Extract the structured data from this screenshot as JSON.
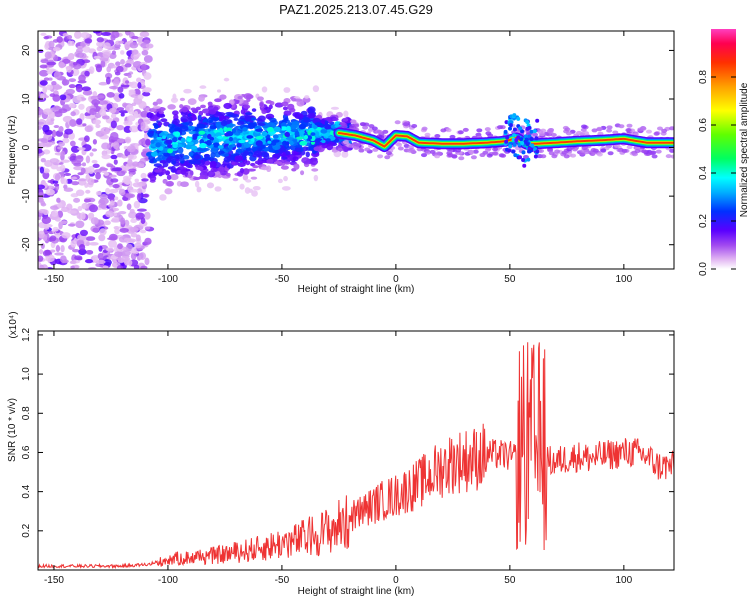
{
  "chart_data": [
    {
      "type": "heatmap",
      "title": "PAZ1.2025.213.07.45.G29",
      "xlabel": "Height of straight line (km)",
      "ylabel": "Frequency (Hz)",
      "xlim": [
        -157,
        122
      ],
      "ylim": [
        -25,
        24
      ],
      "xticks": [
        -150,
        -100,
        -50,
        0,
        50,
        100
      ],
      "yticks": [
        -20,
        -10,
        0,
        10,
        20
      ],
      "colorbar": {
        "label": "Normalized spectral amplitude",
        "range": [
          0,
          1
        ],
        "ticks": [
          0.0,
          0.2,
          0.4,
          0.6,
          0.8
        ],
        "tick_labels": [
          "0.0",
          "0.2",
          "0.4",
          "0.6",
          "0.8"
        ],
        "colors": [
          "#ffffff",
          "#e2b6f2",
          "#a048f0",
          "#5a00ff",
          "#0030ff",
          "#00b0ff",
          "#00ffff",
          "#00ff60",
          "#60ff00",
          "#ffff00",
          "#ffa000",
          "#ff3000",
          "#ff0050",
          "#ff40c0"
        ]
      },
      "ridge": {
        "x": [
          -107,
          -90,
          -70,
          -50,
          -35,
          -25,
          -18,
          -10,
          -5,
          0,
          5,
          10,
          20,
          30,
          40,
          48,
          53,
          57,
          62,
          70,
          80,
          90,
          100,
          110,
          122
        ],
        "y": [
          0.5,
          1.5,
          2.0,
          2.5,
          3.0,
          3.0,
          2.5,
          1.5,
          0.2,
          2.5,
          2.3,
          1.0,
          0.8,
          0.8,
          1.0,
          1.3,
          2.0,
          0.8,
          0.8,
          1.0,
          1.3,
          1.5,
          1.8,
          1.0,
          1.0
        ]
      }
    },
    {
      "type": "line",
      "xlabel": "Height of straight line (km)",
      "ylabel": "SNR (10 * v/v)",
      "y_multiplier": "(x10⁴)",
      "xlim": [
        -157,
        122
      ],
      "ylim": [
        0,
        1.22
      ],
      "xticks": [
        -150,
        -100,
        -50,
        0,
        50,
        100
      ],
      "yticks": [
        0.2,
        0.4,
        0.6,
        0.8,
        1.0,
        1.2
      ],
      "ytick_labels": [
        "0.2",
        "0.4",
        "0.6",
        "0.8",
        "1.0",
        "1.2"
      ],
      "color": "#ee3333",
      "series": [
        {
          "x": [
            -157,
            -140,
            -120,
            -107,
            -100,
            -90,
            -80,
            -70,
            -60,
            -50,
            -45,
            -40,
            -35,
            -30,
            -25,
            -20,
            -15,
            -10,
            -5,
            0,
            5,
            10,
            15,
            20,
            25,
            30,
            35,
            40,
            45,
            50,
            53,
            56,
            58,
            60,
            62,
            64,
            66,
            70,
            75,
            80,
            85,
            90,
            95,
            100,
            105,
            110,
            115,
            122
          ],
          "y": [
            0.02,
            0.02,
            0.02,
            0.03,
            0.06,
            0.07,
            0.08,
            0.1,
            0.12,
            0.15,
            0.16,
            0.18,
            0.2,
            0.22,
            0.25,
            0.27,
            0.3,
            0.33,
            0.36,
            0.38,
            0.41,
            0.44,
            0.48,
            0.52,
            0.55,
            0.56,
            0.57,
            0.59,
            0.59,
            0.58,
            0.57,
            0.62,
            0.5,
            0.55,
            0.6,
            0.5,
            0.56,
            0.55,
            0.57,
            0.58,
            0.57,
            0.58,
            0.59,
            0.6,
            0.6,
            0.58,
            0.53,
            0.53
          ]
        }
      ]
    }
  ]
}
